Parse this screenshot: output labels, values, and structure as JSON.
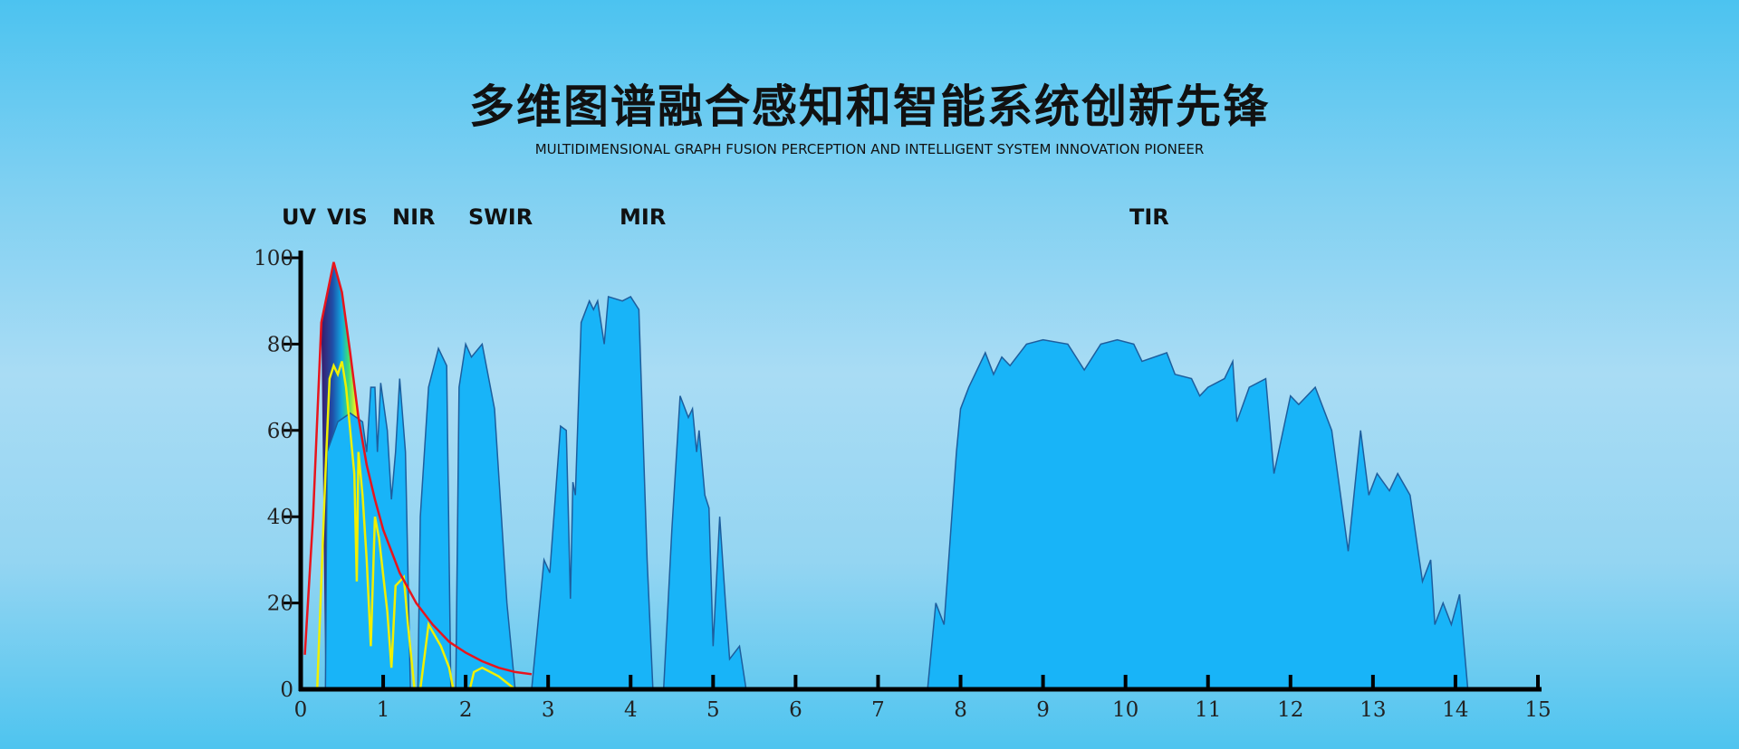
{
  "header": {
    "title": "多维图谱融合感知和智能系统创新先锋",
    "subtitle": "MULTIDIMENSIONAL GRAPH FUSION PERCEPTION AND INTELLIGENT SYSTEM INNOVATION PIONEER"
  },
  "bands": [
    "UV",
    "VIS",
    "NIR",
    "SWIR",
    "MIR",
    "TIR"
  ],
  "colors": {
    "transmission_fill": "#18b4f8",
    "transmission_stroke": "#1d5e9e",
    "blackbody": "#e8141c",
    "solar": "#f0f000"
  },
  "chart_data": {
    "type": "area",
    "xlim": [
      0,
      15
    ],
    "ylim": [
      0,
      100
    ],
    "xticks": [
      "0",
      "1",
      "2",
      "3",
      "4",
      "5",
      "6",
      "7",
      "8",
      "9",
      "10",
      "11",
      "12",
      "13",
      "14",
      "15"
    ],
    "yticks": [
      "0",
      "20",
      "40",
      "60",
      "80",
      "100"
    ],
    "grid": false,
    "series": [
      {
        "kind": "transmission",
        "points": [
          [
            0.3,
            0
          ],
          [
            0.32,
            55
          ],
          [
            0.45,
            62
          ],
          [
            0.6,
            64
          ],
          [
            0.75,
            62
          ],
          [
            0.8,
            55
          ],
          [
            0.85,
            70
          ],
          [
            0.9,
            70
          ],
          [
            0.93,
            55
          ],
          [
            0.97,
            71
          ],
          [
            1.05,
            60
          ],
          [
            1.1,
            44
          ],
          [
            1.15,
            55
          ],
          [
            1.2,
            72
          ],
          [
            1.27,
            55
          ],
          [
            1.33,
            0
          ],
          [
            1.42,
            0
          ],
          [
            1.45,
            40
          ],
          [
            1.55,
            70
          ],
          [
            1.67,
            79
          ],
          [
            1.77,
            75
          ],
          [
            1.82,
            0
          ],
          [
            1.88,
            0
          ],
          [
            1.92,
            70
          ],
          [
            2.0,
            80
          ],
          [
            2.07,
            77
          ],
          [
            2.2,
            80
          ],
          [
            2.35,
            65
          ],
          [
            2.5,
            20
          ],
          [
            2.6,
            0
          ],
          [
            2.8,
            0
          ],
          [
            2.95,
            30
          ],
          [
            3.02,
            27
          ],
          [
            3.15,
            61
          ],
          [
            3.22,
            60
          ],
          [
            3.27,
            21
          ],
          [
            3.3,
            48
          ],
          [
            3.33,
            45
          ],
          [
            3.4,
            85
          ],
          [
            3.5,
            90
          ],
          [
            3.55,
            88
          ],
          [
            3.6,
            90
          ],
          [
            3.68,
            80
          ],
          [
            3.73,
            91
          ],
          [
            3.9,
            90
          ],
          [
            4.0,
            91
          ],
          [
            4.1,
            88
          ],
          [
            4.2,
            30
          ],
          [
            4.27,
            0
          ],
          [
            4.4,
            0
          ],
          [
            4.5,
            37
          ],
          [
            4.6,
            68
          ],
          [
            4.7,
            63
          ],
          [
            4.75,
            65
          ],
          [
            4.8,
            55
          ],
          [
            4.83,
            60
          ],
          [
            4.9,
            45
          ],
          [
            4.95,
            42
          ],
          [
            5.0,
            10
          ],
          [
            5.08,
            40
          ],
          [
            5.15,
            20
          ],
          [
            5.2,
            7
          ],
          [
            5.32,
            10
          ],
          [
            5.4,
            0
          ],
          [
            7.6,
            0
          ],
          [
            7.7,
            20
          ],
          [
            7.8,
            15
          ],
          [
            7.95,
            55
          ],
          [
            8.0,
            65
          ],
          [
            8.1,
            70
          ],
          [
            8.3,
            78
          ],
          [
            8.4,
            73
          ],
          [
            8.5,
            77
          ],
          [
            8.6,
            75
          ],
          [
            8.8,
            80
          ],
          [
            9.0,
            81
          ],
          [
            9.3,
            80
          ],
          [
            9.5,
            74
          ],
          [
            9.7,
            80
          ],
          [
            9.9,
            81
          ],
          [
            10.1,
            80
          ],
          [
            10.2,
            76
          ],
          [
            10.5,
            78
          ],
          [
            10.6,
            73
          ],
          [
            10.8,
            72
          ],
          [
            10.9,
            68
          ],
          [
            11.0,
            70
          ],
          [
            11.2,
            72
          ],
          [
            11.3,
            76
          ],
          [
            11.35,
            62
          ],
          [
            11.5,
            70
          ],
          [
            11.7,
            72
          ],
          [
            11.8,
            50
          ],
          [
            12.0,
            68
          ],
          [
            12.1,
            66
          ],
          [
            12.3,
            70
          ],
          [
            12.5,
            60
          ],
          [
            12.7,
            32
          ],
          [
            12.85,
            60
          ],
          [
            12.95,
            45
          ],
          [
            13.05,
            50
          ],
          [
            13.2,
            46
          ],
          [
            13.3,
            50
          ],
          [
            13.45,
            45
          ],
          [
            13.6,
            25
          ],
          [
            13.7,
            30
          ],
          [
            13.75,
            15
          ],
          [
            13.85,
            20
          ],
          [
            13.95,
            15
          ],
          [
            14.05,
            22
          ],
          [
            14.15,
            0
          ]
        ]
      },
      {
        "kind": "blackbody",
        "points": [
          [
            0.05,
            8
          ],
          [
            0.15,
            40
          ],
          [
            0.25,
            85
          ],
          [
            0.4,
            99
          ],
          [
            0.5,
            92
          ],
          [
            0.6,
            78
          ],
          [
            0.7,
            63
          ],
          [
            0.8,
            52
          ],
          [
            0.9,
            44
          ],
          [
            1.0,
            37
          ],
          [
            1.2,
            27
          ],
          [
            1.4,
            20
          ],
          [
            1.6,
            15
          ],
          [
            1.8,
            11
          ],
          [
            2.0,
            8.5
          ],
          [
            2.2,
            6.5
          ],
          [
            2.4,
            5
          ],
          [
            2.6,
            4
          ],
          [
            2.8,
            3.5
          ]
        ]
      },
      {
        "kind": "solar",
        "points": [
          [
            0.2,
            0
          ],
          [
            0.25,
            25
          ],
          [
            0.3,
            50
          ],
          [
            0.35,
            72
          ],
          [
            0.4,
            75
          ],
          [
            0.45,
            73
          ],
          [
            0.5,
            76
          ],
          [
            0.55,
            70
          ],
          [
            0.6,
            60
          ],
          [
            0.65,
            50
          ],
          [
            0.68,
            25
          ],
          [
            0.7,
            55
          ],
          [
            0.75,
            45
          ],
          [
            0.8,
            30
          ],
          [
            0.85,
            10
          ],
          [
            0.9,
            40
          ],
          [
            0.95,
            35
          ],
          [
            1.05,
            18
          ],
          [
            1.1,
            5
          ],
          [
            1.15,
            24
          ],
          [
            1.25,
            26
          ],
          [
            1.3,
            15
          ],
          [
            1.38,
            0
          ],
          [
            1.45,
            0
          ],
          [
            1.55,
            15
          ],
          [
            1.7,
            10
          ],
          [
            1.8,
            5
          ],
          [
            1.85,
            0
          ],
          [
            2.05,
            0
          ],
          [
            2.1,
            4
          ],
          [
            2.2,
            5
          ],
          [
            2.4,
            3
          ],
          [
            2.6,
            0
          ]
        ]
      }
    ]
  }
}
